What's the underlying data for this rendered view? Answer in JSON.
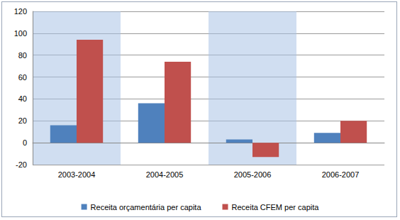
{
  "chart_data": {
    "type": "bar",
    "categories": [
      "2003-2004",
      "2004-2005",
      "2005-2006",
      "2006-2007"
    ],
    "series": [
      {
        "name": "Receita orçamentária per capita",
        "color": "#4f81bd",
        "values": [
          16,
          36,
          3,
          9
        ]
      },
      {
        "name": "Receita CFEM per capita",
        "color": "#c0504d",
        "values": [
          94,
          74,
          -13,
          20
        ]
      }
    ],
    "ylim": [
      -20,
      120
    ],
    "yticks": [
      -20,
      0,
      20,
      40,
      60,
      80,
      100,
      120
    ],
    "grid": true,
    "legend": "bottom"
  }
}
